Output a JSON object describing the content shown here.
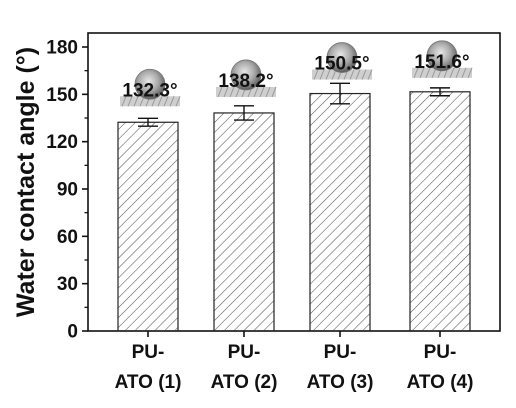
{
  "chart_data": {
    "type": "bar",
    "title": "",
    "xlabel": "",
    "ylabel": "Water contact angle (°)",
    "categories": [
      [
        "PU-",
        "ATO (1)"
      ],
      [
        "PU-",
        "ATO (2)"
      ],
      [
        "PU-",
        "ATO (3)"
      ],
      [
        "PU-",
        "ATO (4)"
      ]
    ],
    "values": [
      132.3,
      138.2,
      150.5,
      151.6
    ],
    "errors": [
      2.5,
      4.5,
      6.5,
      2.5
    ],
    "data_labels": [
      "132.3°",
      "138.2°",
      "150.5°",
      "151.6°"
    ],
    "ylim": [
      0,
      190
    ],
    "yticks": [
      "0",
      "30",
      "60",
      "90",
      "120",
      "150",
      "180"
    ],
    "grid": false,
    "legend": "none",
    "bar_fill": "hatched",
    "bar_color": "#555555",
    "droplet_insets": true
  }
}
